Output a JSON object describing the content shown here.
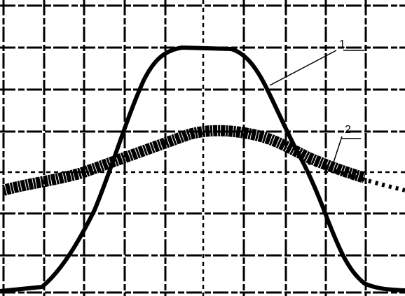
{
  "annotations": [
    "1",
    "2"
  ]
}
